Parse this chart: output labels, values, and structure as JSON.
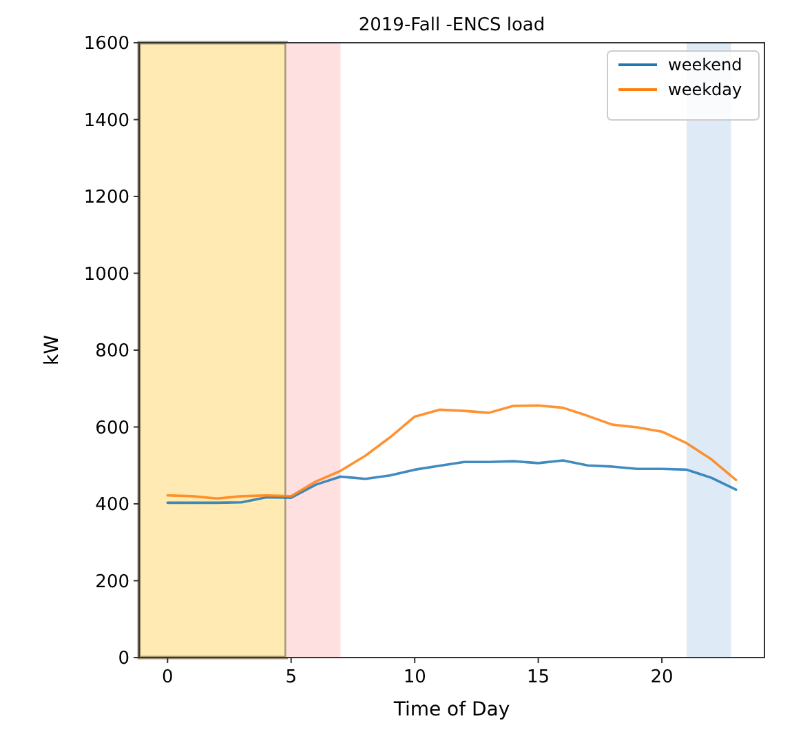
{
  "chart_data": {
    "type": "line",
    "title": "2019-Fall -ENCS load",
    "xlabel": "Time of Day",
    "ylabel": "kW",
    "x": [
      0,
      1,
      2,
      3,
      4,
      5,
      6,
      7,
      8,
      9,
      10,
      11,
      12,
      13,
      14,
      15,
      16,
      17,
      18,
      19,
      20,
      21,
      22,
      23
    ],
    "series": [
      {
        "name": "weekend",
        "color": "#1f77b4",
        "values": [
          403,
          403,
          403,
          404,
          417,
          416,
          450,
          471,
          465,
          474,
          489,
          499,
          509,
          509,
          511,
          506,
          513,
          500,
          497,
          491,
          491,
          489,
          468,
          437
        ]
      },
      {
        "name": "weekday",
        "color": "#ff7f0e",
        "values": [
          422,
          420,
          414,
          420,
          422,
          420,
          458,
          486,
          525,
          573,
          627,
          645,
          642,
          637,
          655,
          656,
          650,
          629,
          606,
          599,
          588,
          558,
          516,
          462
        ]
      }
    ],
    "xlim": [
      -1.15,
      24.15
    ],
    "ylim": [
      0,
      1600
    ],
    "xticks": [
      0,
      5,
      10,
      15,
      20
    ],
    "yticks": [
      0,
      200,
      400,
      600,
      800,
      1000,
      1200,
      1400,
      1600
    ],
    "bands": [
      {
        "axis": "x",
        "from": -1.2,
        "to": 4.8,
        "color": "#ffeab3"
      },
      {
        "axis": "x",
        "from": 4.8,
        "to": 7,
        "color": "#ffe0e0"
      },
      {
        "axis": "x",
        "from": 21,
        "to": 22.8,
        "color": "#deebf6"
      }
    ],
    "legend": "top right",
    "grid": false,
    "marker": "none",
    "line_style": "solid"
  }
}
